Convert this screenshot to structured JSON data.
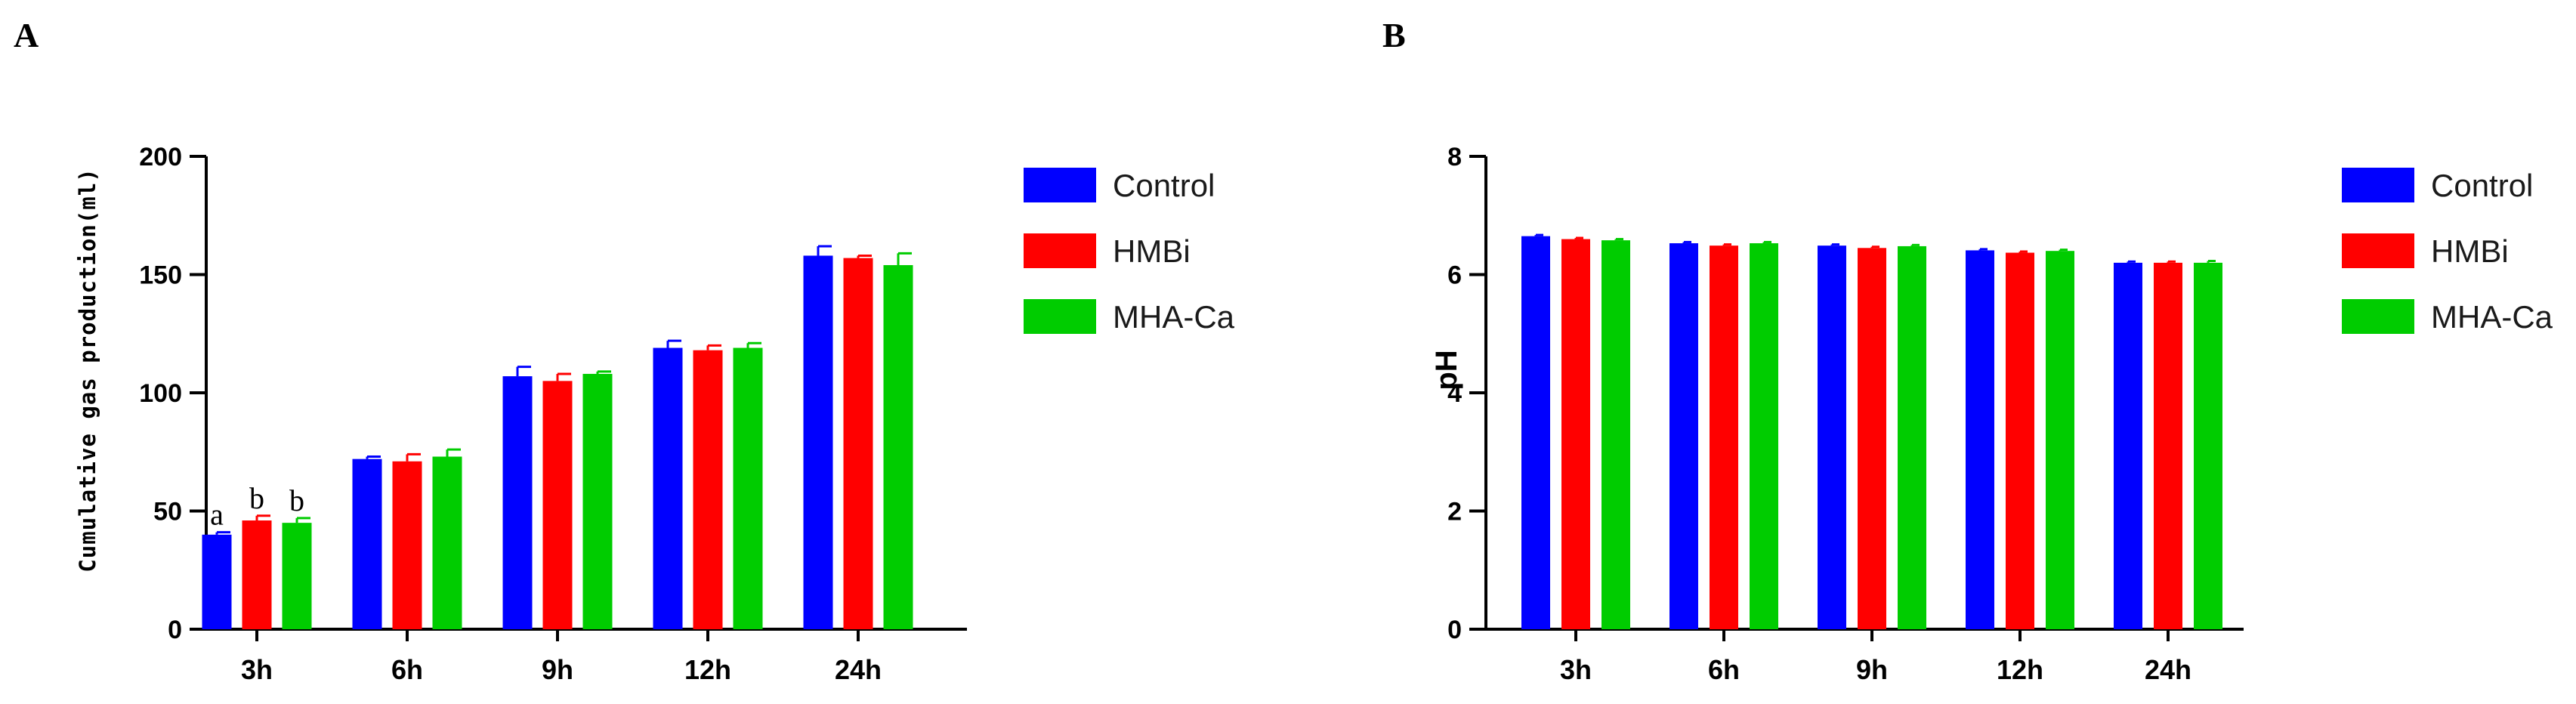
{
  "colors": {
    "Control": "#0000ff",
    "HMBi": "#ff0000",
    "MHA-Ca": "#00cc00"
  },
  "chart_data": [
    {
      "panel": "A",
      "type": "bar",
      "ylabel": "Cumulative gas production(ml)",
      "categories": [
        "3h",
        "6h",
        "9h",
        "12h",
        "24h"
      ],
      "ylim": [
        0,
        200
      ],
      "yticks": [
        "0",
        "50",
        "100",
        "150",
        "200"
      ],
      "legend_position": "right",
      "series": [
        {
          "name": "Control",
          "values": [
            40,
            72,
            107,
            119,
            158
          ],
          "errors": [
            1,
            1,
            4,
            3,
            4
          ]
        },
        {
          "name": "HMBi",
          "values": [
            46,
            71,
            105,
            118,
            157
          ],
          "errors": [
            2,
            3,
            3,
            2,
            1
          ]
        },
        {
          "name": "MHA-Ca",
          "values": [
            45,
            73,
            108,
            119,
            154
          ],
          "errors": [
            2,
            3,
            1,
            2,
            5
          ]
        }
      ],
      "annotations": [
        {
          "category": "3h",
          "series": "Control",
          "text": "a"
        },
        {
          "category": "3h",
          "series": "HMBi",
          "text": "b"
        },
        {
          "category": "3h",
          "series": "MHA-Ca",
          "text": "b"
        }
      ]
    },
    {
      "panel": "B",
      "type": "bar",
      "ylabel": "pH",
      "categories": [
        "3h",
        "6h",
        "9h",
        "12h",
        "24h"
      ],
      "ylim": [
        0,
        8
      ],
      "yticks": [
        "0",
        "2",
        "4",
        "6",
        "8"
      ],
      "legend_position": "right",
      "series": [
        {
          "name": "Control",
          "values": [
            6.65,
            6.53,
            6.49,
            6.41,
            6.2
          ],
          "errors": [
            0.02,
            0.02,
            0.02,
            0.02,
            0.02
          ]
        },
        {
          "name": "HMBi",
          "values": [
            6.6,
            6.49,
            6.45,
            6.37,
            6.2
          ],
          "errors": [
            0.02,
            0.02,
            0.02,
            0.02,
            0.02
          ]
        },
        {
          "name": "MHA-Ca",
          "values": [
            6.58,
            6.53,
            6.48,
            6.4,
            6.2
          ],
          "errors": [
            0.02,
            0.02,
            0.02,
            0.02,
            0.03
          ]
        }
      ]
    }
  ]
}
